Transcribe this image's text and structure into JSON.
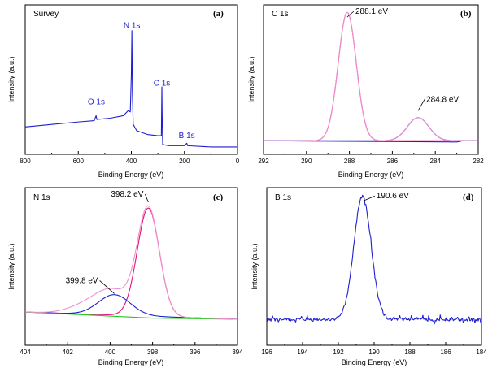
{
  "colors": {
    "blue": "#1f1fd0",
    "magenta": "#e0157a",
    "pink": "#f08fd0",
    "green": "#22c81e",
    "axis": "#000000"
  },
  "chart_data": [
    {
      "type": "line",
      "panel_label": "(a)",
      "title": "Survey",
      "xlabel": "Binding Energy (eV)",
      "ylabel": "Intensity (a.u.)",
      "xlim": [
        800,
        0
      ],
      "xticks": [
        800,
        600,
        400,
        200,
        0
      ],
      "ylim": [
        0,
        1
      ],
      "peak_labels": [
        {
          "text": "O 1s",
          "x": 532,
          "y": 0.36
        },
        {
          "text": "N 1s",
          "x": 398,
          "y": 0.97
        },
        {
          "text": "C 1s",
          "x": 285,
          "y": 0.51
        },
        {
          "text": "B 1s",
          "x": 191,
          "y": 0.09
        }
      ],
      "series": [
        {
          "color": "#1f1fd0",
          "points": [
            [
              800,
              0.18
            ],
            [
              700,
              0.2
            ],
            [
              600,
              0.22
            ],
            [
              540,
              0.23
            ],
            [
              533,
              0.27
            ],
            [
              530,
              0.24
            ],
            [
              480,
              0.25
            ],
            [
              430,
              0.27
            ],
            [
              412,
              0.31
            ],
            [
              404,
              0.3
            ],
            [
              400,
              0.6
            ],
            [
              398,
              0.95
            ],
            [
              396,
              0.45
            ],
            [
              393,
              0.2
            ],
            [
              380,
              0.15
            ],
            [
              340,
              0.12
            ],
            [
              300,
              0.11
            ],
            [
              287,
              0.11
            ],
            [
              286,
              0.3
            ],
            [
              285,
              0.5
            ],
            [
              284,
              0.28
            ],
            [
              282,
              0.04
            ],
            [
              260,
              0.03
            ],
            [
              200,
              0.03
            ],
            [
              191,
              0.05
            ],
            [
              188,
              0.03
            ],
            [
              100,
              0.02
            ],
            [
              0,
              0.02
            ]
          ]
        }
      ]
    },
    {
      "type": "line",
      "panel_label": "(b)",
      "title": "C 1s",
      "xlabel": "Binding Energy (eV)",
      "ylabel": "Intensity (a.u.)",
      "xlim": [
        292,
        282
      ],
      "xticks": [
        292,
        290,
        288,
        286,
        284,
        282
      ],
      "ylim": [
        0,
        1
      ],
      "annotations": [
        {
          "text": "288.1 eV",
          "x": 288.1,
          "y": 1.0
        },
        {
          "text": "284.8 eV",
          "x": 284.8,
          "y": 0.27
        }
      ],
      "series": [
        {
          "color": "#e0157a",
          "model": "gaussian",
          "center": 288.1,
          "amplitude": 1.0,
          "sigma": 0.42,
          "baseline": 0.03
        },
        {
          "color": "#1f1fd0",
          "model": "gaussian",
          "center": 284.8,
          "amplitude": 0.18,
          "sigma": 0.5,
          "baseline": 0.03
        },
        {
          "color": "#1f1fd0",
          "model": "line",
          "points": [
            [
              292,
              0.03
            ],
            [
              283,
              0.02
            ],
            [
              282.7,
              0.03
            ]
          ]
        },
        {
          "color": "#f08fd0",
          "model": "sum",
          "centers": [
            288.1,
            284.8
          ],
          "amplitudes": [
            1.0,
            0.18
          ],
          "sigmas": [
            0.42,
            0.5
          ],
          "baseline": 0.03
        }
      ]
    },
    {
      "type": "line",
      "panel_label": "(c)",
      "title": "N 1s",
      "xlabel": "Binding Energy (eV)",
      "ylabel": "Intensity (a.u.)",
      "xlim": [
        404,
        394
      ],
      "xticks": [
        404,
        402,
        400,
        398,
        396,
        394
      ],
      "ylim": [
        0,
        1
      ],
      "annotations": [
        {
          "text": "398.2 eV",
          "x": 398.2,
          "y": 0.98
        },
        {
          "text": "399.8 eV",
          "x": 399.8,
          "y": 0.22
        }
      ],
      "series": [
        {
          "color": "#e0157a",
          "model": "gaussian",
          "center": 398.2,
          "amplitude": 0.9,
          "sigma": 0.52,
          "baseline_from": [
            404,
            0.06,
            394,
            0.0
          ]
        },
        {
          "color": "#1f1fd0",
          "model": "gaussian",
          "center": 399.8,
          "amplitude": 0.17,
          "sigma": 0.75,
          "baseline_from": [
            404,
            0.06,
            394,
            0.0
          ]
        },
        {
          "color": "#22c81e",
          "model": "line",
          "points": [
            [
              404,
              0.06
            ],
            [
              398,
              0.01
            ],
            [
              394,
              0.0
            ]
          ]
        },
        {
          "color": "#f08fd0",
          "model": "sum",
          "centers": [
            398.2,
            399.8,
            400.9
          ],
          "amplitudes": [
            0.9,
            0.17,
            0.09
          ],
          "sigmas": [
            0.52,
            0.75,
            0.9
          ],
          "baseline_from": [
            404,
            0.06,
            394,
            0.0
          ]
        }
      ]
    },
    {
      "type": "line",
      "panel_label": "(d)",
      "title": "B 1s",
      "xlabel": "Binding Energy (eV)",
      "ylabel": "Intensity (a.u.)",
      "xlim": [
        196,
        184
      ],
      "xticks": [
        196,
        194,
        192,
        190,
        188,
        186,
        184
      ],
      "ylim": [
        0,
        1
      ],
      "annotations": [
        {
          "text": "190.6 eV",
          "x": 190.6,
          "y": 0.98
        }
      ],
      "series": [
        {
          "color": "#1f1fd0",
          "model": "gaussian_noisy",
          "center": 190.65,
          "amplitude": 0.95,
          "sigma": 0.48,
          "baseline": 0.06,
          "noise": 0.012
        }
      ]
    }
  ]
}
